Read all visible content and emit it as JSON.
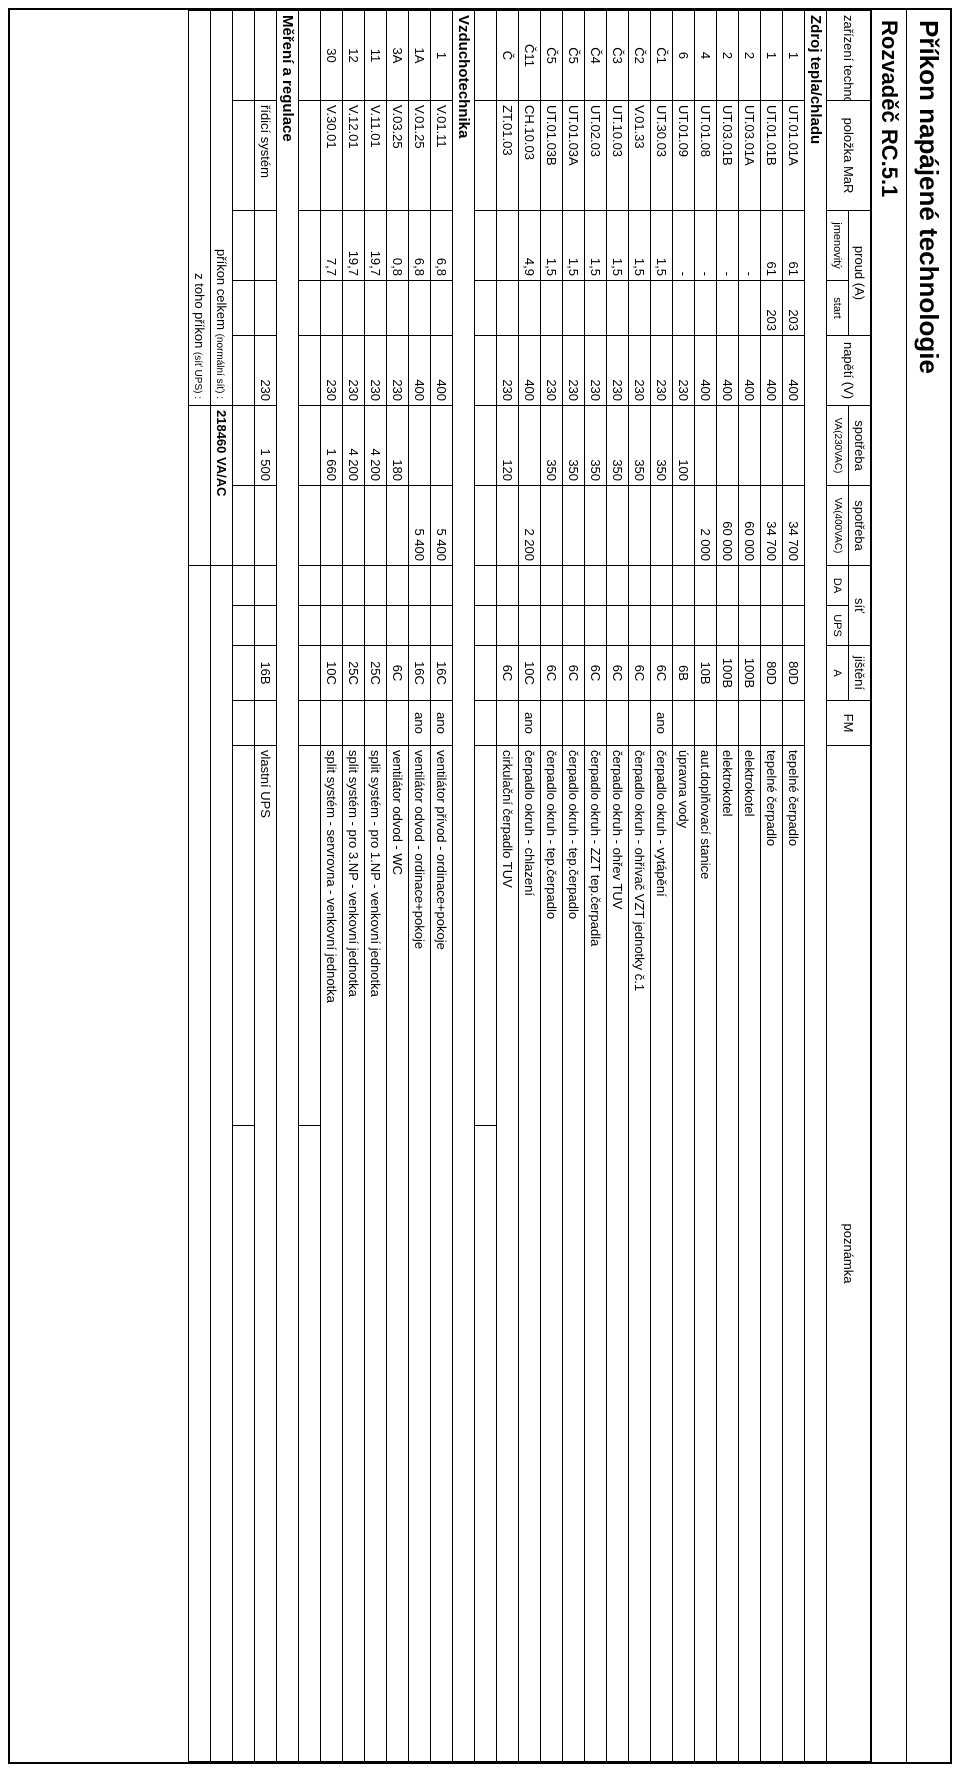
{
  "title": "Příkon napájené technologie",
  "subtitle": "Rozvaděč RC.5.1",
  "headers": {
    "tech": "zařízení technologie",
    "mar": "položka MaR",
    "current": "proud (A)",
    "current_nom": "jmenovitý",
    "current_start": "start",
    "voltage": "napětí (V)",
    "cons230_top": "spotřeba",
    "cons230_sub": "VA(230VAC)",
    "cons400_top": "spotřeba",
    "cons400_sub": "VA(400VAC)",
    "net": "síť",
    "net_da": "DA",
    "net_ups": "UPS",
    "fuse_top": "jištění",
    "fuse_sub": "A",
    "fm": "FM",
    "note": "poznámka"
  },
  "sections": [
    {
      "title": "Zdroj tepla/chladu",
      "rows": [
        {
          "tech": "1",
          "mar": "UT.01.01A",
          "inom": "61",
          "istart": "203",
          "v": "400",
          "p230": "",
          "p400": "34 700",
          "da": "",
          "ups": "",
          "fuse": "80D",
          "fm": "",
          "desc": "tepelné čerpadlo"
        },
        {
          "tech": "1",
          "mar": "UT.01.01B",
          "inom": "61",
          "istart": "203",
          "v": "400",
          "p230": "",
          "p400": "34 700",
          "da": "",
          "ups": "",
          "fuse": "80D",
          "fm": "",
          "desc": "tepelné čerpadlo"
        },
        {
          "tech": "2",
          "mar": "UT.03.01A",
          "inom": "-",
          "istart": "",
          "v": "400",
          "p230": "",
          "p400": "60 000",
          "da": "",
          "ups": "",
          "fuse": "100B",
          "fm": "",
          "desc": "elektrokotel"
        },
        {
          "tech": "2",
          "mar": "UT.03.01B",
          "inom": "-",
          "istart": "",
          "v": "400",
          "p230": "",
          "p400": "60 000",
          "da": "",
          "ups": "",
          "fuse": "100B",
          "fm": "",
          "desc": "elektrokotel"
        },
        {
          "tech": "4",
          "mar": "UT.01.08",
          "inom": "-",
          "istart": "",
          "v": "400",
          "p230": "",
          "p400": "2 000",
          "da": "",
          "ups": "",
          "fuse": "10B",
          "fm": "",
          "desc": "aut.doplňovací stanice"
        },
        {
          "tech": "6",
          "mar": "UT.01.09",
          "inom": "-",
          "istart": "",
          "v": "230",
          "p230": "100",
          "p400": "",
          "da": "",
          "ups": "",
          "fuse": "6B",
          "fm": "",
          "desc": "úpravna vody"
        },
        {
          "tech": "Č1",
          "mar": "UT.30.03",
          "inom": "1,5",
          "istart": "",
          "v": "230",
          "p230": "350",
          "p400": "",
          "da": "",
          "ups": "",
          "fuse": "6C",
          "fm": "ano",
          "desc": "čerpadlo okruh - vytápění"
        },
        {
          "tech": "Č2",
          "mar": "V.01.33",
          "inom": "1,5",
          "istart": "",
          "v": "230",
          "p230": "350",
          "p400": "",
          "da": "",
          "ups": "",
          "fuse": "6C",
          "fm": "",
          "desc": "čerpadlo okruh - ohřívač VZT jednotky č.1"
        },
        {
          "tech": "Č3",
          "mar": "UT.10.03",
          "inom": "1,5",
          "istart": "",
          "v": "230",
          "p230": "350",
          "p400": "",
          "da": "",
          "ups": "",
          "fuse": "6C",
          "fm": "",
          "desc": "čerpadlo okruh - ohřev TUV"
        },
        {
          "tech": "Č4",
          "mar": "UT.02.03",
          "inom": "1,5",
          "istart": "",
          "v": "230",
          "p230": "350",
          "p400": "",
          "da": "",
          "ups": "",
          "fuse": "6C",
          "fm": "",
          "desc": "čerpadlo okruh - ZZT tep.čerpadla"
        },
        {
          "tech": "Č5",
          "mar": "UT.01.03A",
          "inom": "1,5",
          "istart": "",
          "v": "230",
          "p230": "350",
          "p400": "",
          "da": "",
          "ups": "",
          "fuse": "6C",
          "fm": "",
          "desc": "čerpadlo okruh - tep.čerpadlo"
        },
        {
          "tech": "Č5",
          "mar": "UT.01.03B",
          "inom": "1,5",
          "istart": "",
          "v": "230",
          "p230": "350",
          "p400": "",
          "da": "",
          "ups": "",
          "fuse": "6C",
          "fm": "",
          "desc": "čerpadlo okruh - tep.čerpadlo"
        },
        {
          "tech": "Č11",
          "mar": "CH.10.03",
          "inom": "4,9",
          "istart": "",
          "v": "400",
          "p230": "",
          "p400": "2 200",
          "da": "",
          "ups": "",
          "fuse": "10C",
          "fm": "ano",
          "desc": "čerpadlo okruh - chlazení"
        },
        {
          "tech": "Č",
          "mar": "ZT.01.03",
          "inom": "",
          "istart": "",
          "v": "230",
          "p230": "120",
          "p400": "",
          "da": "",
          "ups": "",
          "fuse": "6C",
          "fm": "",
          "desc": "cirkulační čerpadlo TUV"
        }
      ],
      "trailing_blank": 1
    },
    {
      "title": "Vzduchotechnika",
      "rows": [
        {
          "tech": "1",
          "mar": "V.01.11",
          "inom": "6,8",
          "istart": "",
          "v": "400",
          "p230": "",
          "p400": "5 400",
          "da": "",
          "ups": "",
          "fuse": "16C",
          "fm": "ano",
          "desc": "ventilátor přívod - ordinace+pokoje"
        },
        {
          "tech": "1A",
          "mar": "V.01.25",
          "inom": "6,8",
          "istart": "",
          "v": "400",
          "p230": "",
          "p400": "5 400",
          "da": "",
          "ups": "",
          "fuse": "16C",
          "fm": "ano",
          "desc": "ventilátor odvod - ordinace+pokoje"
        },
        {
          "tech": "3A",
          "mar": "V.03.25",
          "inom": "0,8",
          "istart": "",
          "v": "230",
          "p230": "180",
          "p400": "",
          "da": "",
          "ups": "",
          "fuse": "6C",
          "fm": "",
          "desc": "ventilátor odvod - WC"
        },
        {
          "tech": "11",
          "mar": "V.11.01",
          "inom": "19,7",
          "istart": "",
          "v": "230",
          "p230": "4 200",
          "p400": "",
          "da": "",
          "ups": "",
          "fuse": "25C",
          "fm": "",
          "desc": "split systém - pro 1.NP - venkovní jednotka"
        },
        {
          "tech": "12",
          "mar": "V.12.01",
          "inom": "19,7",
          "istart": "",
          "v": "230",
          "p230": "4 200",
          "p400": "",
          "da": "",
          "ups": "",
          "fuse": "25C",
          "fm": "",
          "desc": "split systém - pro 3.NP - venkovní jednotka"
        },
        {
          "tech": "30",
          "mar": "V.30.01",
          "inom": "7,7",
          "istart": "",
          "v": "230",
          "p230": "1 660",
          "p400": "",
          "da": "",
          "ups": "",
          "fuse": "10C",
          "fm": "",
          "desc": "split systém - servrovna - venkovní jednotka"
        }
      ],
      "trailing_blank": 1
    },
    {
      "title": "Měření a regulace",
      "rows": [
        {
          "tech": "",
          "mar": "řídicí systém",
          "inom": "",
          "istart": "",
          "v": "230",
          "p230": "1 500",
          "p400": "",
          "da": "",
          "ups": "",
          "fuse": "16B",
          "fm": "",
          "desc": "vlastní UPS"
        }
      ],
      "trailing_blank": 1
    }
  ],
  "totals": {
    "label_main": "příkon celkem",
    "label_main_small": "(normální síť) :",
    "value_main": "218460 VA/AC",
    "label_ups": "z toho příkon",
    "label_ups_small": "(síť UPS) :",
    "value_ups": ""
  }
}
